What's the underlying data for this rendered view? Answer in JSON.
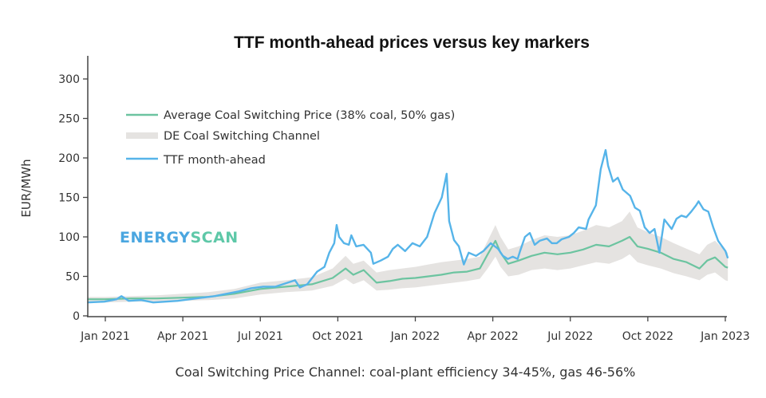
{
  "chart_data": {
    "type": "line",
    "title": "TTF month-ahead prices versus key markers",
    "xlabel": "Coal Switching Price Channel: coal-plant efficiency 34-45%, gas 46-56%",
    "ylabel": "EUR/MWh",
    "ylim": [
      0,
      320
    ],
    "yticks": [
      0,
      50,
      100,
      150,
      200,
      250,
      300
    ],
    "xlim_months_from_jan2021": [
      -0.7,
      24.1
    ],
    "xticks": [
      {
        "label": "Jan 2021",
        "m": 0
      },
      {
        "label": "Apr 2021",
        "m": 3
      },
      {
        "label": "Jul 2021",
        "m": 6
      },
      {
        "label": "Oct 2021",
        "m": 9
      },
      {
        "label": "Jan 2022",
        "m": 12
      },
      {
        "label": "Apr 2022",
        "m": 15
      },
      {
        "label": "Jul 2022",
        "m": 18
      },
      {
        "label": "Oct 2022",
        "m": 21
      },
      {
        "label": "Jan 2023",
        "m": 24
      }
    ],
    "x_unit": "months since Jan 2021",
    "legend_position": "top-left",
    "watermark": "energyscan",
    "series": [
      {
        "name": "Average Coal Switching Price (38% coal, 50% gas)",
        "type": "line",
        "color": "#6cc4a0",
        "points": [
          [
            -0.7,
            21
          ],
          [
            0,
            21
          ],
          [
            1,
            22
          ],
          [
            2,
            22
          ],
          [
            3,
            23
          ],
          [
            4,
            24
          ],
          [
            5,
            28
          ],
          [
            6,
            34
          ],
          [
            7,
            37
          ],
          [
            8,
            40
          ],
          [
            8.8,
            48
          ],
          [
            9.3,
            60
          ],
          [
            9.6,
            52
          ],
          [
            10,
            58
          ],
          [
            10.5,
            42
          ],
          [
            11,
            44
          ],
          [
            11.5,
            47
          ],
          [
            12,
            48
          ],
          [
            12.5,
            50
          ],
          [
            13,
            52
          ],
          [
            13.5,
            55
          ],
          [
            14,
            56
          ],
          [
            14.5,
            60
          ],
          [
            14.8,
            78
          ],
          [
            15.1,
            95
          ],
          [
            15.3,
            80
          ],
          [
            15.6,
            66
          ],
          [
            16,
            70
          ],
          [
            16.5,
            76
          ],
          [
            17,
            80
          ],
          [
            17.5,
            78
          ],
          [
            18,
            80
          ],
          [
            18.5,
            84
          ],
          [
            19,
            90
          ],
          [
            19.5,
            88
          ],
          [
            20,
            95
          ],
          [
            20.3,
            100
          ],
          [
            20.6,
            88
          ],
          [
            21,
            85
          ],
          [
            21.5,
            80
          ],
          [
            22,
            72
          ],
          [
            22.5,
            68
          ],
          [
            23,
            60
          ],
          [
            23.3,
            70
          ],
          [
            23.6,
            74
          ],
          [
            24,
            62
          ],
          [
            24.1,
            61
          ]
        ]
      },
      {
        "name": "DE Coal Switching Channel",
        "type": "band",
        "color": "#e5e3e1",
        "upper": [
          [
            -0.7,
            24
          ],
          [
            0,
            24
          ],
          [
            1,
            25
          ],
          [
            2,
            26
          ],
          [
            3,
            28
          ],
          [
            4,
            30
          ],
          [
            5,
            34
          ],
          [
            6,
            42
          ],
          [
            7,
            45
          ],
          [
            8,
            49
          ],
          [
            8.8,
            60
          ],
          [
            9.3,
            76
          ],
          [
            9.6,
            66
          ],
          [
            10,
            70
          ],
          [
            10.5,
            55
          ],
          [
            11,
            58
          ],
          [
            11.5,
            60
          ],
          [
            12,
            62
          ],
          [
            12.5,
            65
          ],
          [
            13,
            68
          ],
          [
            13.5,
            70
          ],
          [
            14,
            72
          ],
          [
            14.5,
            75
          ],
          [
            14.8,
            95
          ],
          [
            15.1,
            115
          ],
          [
            15.3,
            100
          ],
          [
            15.6,
            84
          ],
          [
            16,
            88
          ],
          [
            16.5,
            96
          ],
          [
            17,
            102
          ],
          [
            17.5,
            100
          ],
          [
            18,
            102
          ],
          [
            18.5,
            108
          ],
          [
            19,
            115
          ],
          [
            19.5,
            112
          ],
          [
            20,
            120
          ],
          [
            20.3,
            132
          ],
          [
            20.6,
            112
          ],
          [
            21,
            106
          ],
          [
            21.5,
            100
          ],
          [
            22,
            92
          ],
          [
            22.5,
            85
          ],
          [
            23,
            78
          ],
          [
            23.3,
            90
          ],
          [
            23.6,
            95
          ],
          [
            24,
            82
          ],
          [
            24.1,
            80
          ]
        ],
        "lower": [
          [
            -0.7,
            17
          ],
          [
            0,
            17
          ],
          [
            1,
            18
          ],
          [
            2,
            18
          ],
          [
            3,
            19
          ],
          [
            4,
            20
          ],
          [
            5,
            22
          ],
          [
            6,
            27
          ],
          [
            7,
            30
          ],
          [
            8,
            32
          ],
          [
            8.8,
            38
          ],
          [
            9.3,
            47
          ],
          [
            9.6,
            40
          ],
          [
            10,
            45
          ],
          [
            10.5,
            32
          ],
          [
            11,
            33
          ],
          [
            11.5,
            35
          ],
          [
            12,
            36
          ],
          [
            12.5,
            38
          ],
          [
            13,
            40
          ],
          [
            13.5,
            42
          ],
          [
            14,
            44
          ],
          [
            14.5,
            47
          ],
          [
            14.8,
            60
          ],
          [
            15.1,
            75
          ],
          [
            15.3,
            62
          ],
          [
            15.6,
            50
          ],
          [
            16,
            52
          ],
          [
            16.5,
            58
          ],
          [
            17,
            60
          ],
          [
            17.5,
            58
          ],
          [
            18,
            60
          ],
          [
            18.5,
            64
          ],
          [
            19,
            68
          ],
          [
            19.5,
            66
          ],
          [
            20,
            72
          ],
          [
            20.3,
            78
          ],
          [
            20.6,
            68
          ],
          [
            21,
            64
          ],
          [
            21.5,
            60
          ],
          [
            22,
            54
          ],
          [
            22.5,
            50
          ],
          [
            23,
            45
          ],
          [
            23.3,
            52
          ],
          [
            23.6,
            55
          ],
          [
            24,
            45
          ],
          [
            24.1,
            44
          ]
        ]
      },
      {
        "name": "TTF month-ahead",
        "type": "line",
        "color": "#56b4e9",
        "points": [
          [
            -0.7,
            17
          ],
          [
            0,
            18
          ],
          [
            0.5,
            21
          ],
          [
            0.7,
            25
          ],
          [
            1,
            19
          ],
          [
            1.5,
            20
          ],
          [
            2,
            17
          ],
          [
            2.5,
            18
          ],
          [
            3,
            19
          ],
          [
            3.5,
            21
          ],
          [
            4,
            23
          ],
          [
            4.5,
            25
          ],
          [
            5,
            28
          ],
          [
            5.5,
            31
          ],
          [
            6,
            35
          ],
          [
            6.5,
            37
          ],
          [
            7,
            37
          ],
          [
            7.5,
            42
          ],
          [
            7.8,
            45
          ],
          [
            8,
            36
          ],
          [
            8.3,
            40
          ],
          [
            8.7,
            56
          ],
          [
            9,
            62
          ],
          [
            9.2,
            80
          ],
          [
            9.4,
            92
          ],
          [
            9.5,
            115
          ],
          [
            9.6,
            100
          ],
          [
            9.8,
            92
          ],
          [
            10,
            90
          ],
          [
            10.1,
            102
          ],
          [
            10.3,
            88
          ],
          [
            10.6,
            90
          ],
          [
            10.9,
            80
          ],
          [
            11,
            66
          ],
          [
            11.3,
            70
          ],
          [
            11.6,
            75
          ],
          [
            11.8,
            85
          ],
          [
            12,
            90
          ],
          [
            12.3,
            82
          ],
          [
            12.6,
            92
          ],
          [
            12.9,
            88
          ],
          [
            13.2,
            100
          ],
          [
            13.5,
            130
          ],
          [
            13.8,
            150
          ],
          [
            14,
            180
          ],
          [
            14.1,
            120
          ],
          [
            14.3,
            96
          ],
          [
            14.5,
            88
          ],
          [
            14.7,
            65
          ],
          [
            14.9,
            80
          ],
          [
            15.2,
            76
          ],
          [
            15.5,
            82
          ],
          [
            15.8,
            92
          ],
          [
            16.1,
            85
          ],
          [
            16.3,
            76
          ],
          [
            16.5,
            72
          ],
          [
            16.7,
            75
          ],
          [
            16.9,
            72
          ],
          [
            17,
            82
          ],
          [
            17.2,
            100
          ],
          [
            17.4,
            105
          ],
          [
            17.6,
            90
          ],
          [
            17.8,
            95
          ],
          [
            18.1,
            98
          ],
          [
            18.3,
            92
          ],
          [
            18.5,
            92
          ],
          [
            18.7,
            97
          ],
          [
            19,
            100
          ],
          [
            19.2,
            105
          ],
          [
            19.4,
            112
          ],
          [
            19.7,
            110
          ],
          [
            19.8,
            122
          ],
          [
            20.1,
            140
          ],
          [
            20.3,
            186
          ],
          [
            20.5,
            210
          ],
          [
            20.6,
            190
          ],
          [
            20.8,
            170
          ],
          [
            21,
            175
          ],
          [
            21.2,
            160
          ],
          [
            21.5,
            152
          ],
          [
            21.7,
            137
          ],
          [
            21.9,
            133
          ],
          [
            22.1,
            112
          ],
          [
            22.3,
            105
          ],
          [
            22.5,
            110
          ],
          [
            22.7,
            80
          ],
          [
            22.9,
            122
          ],
          [
            23.2,
            110
          ],
          [
            23.4,
            123
          ],
          [
            23.6,
            127
          ],
          [
            23.8,
            125
          ],
          [
            24,
            132
          ],
          [
            24.2,
            140
          ],
          [
            24.3,
            145
          ],
          [
            24.5,
            135
          ],
          [
            24.7,
            132
          ],
          [
            24.9,
            112
          ],
          [
            25.1,
            95
          ],
          [
            25.4,
            82
          ],
          [
            25.5,
            73
          ]
        ]
      }
    ]
  }
}
